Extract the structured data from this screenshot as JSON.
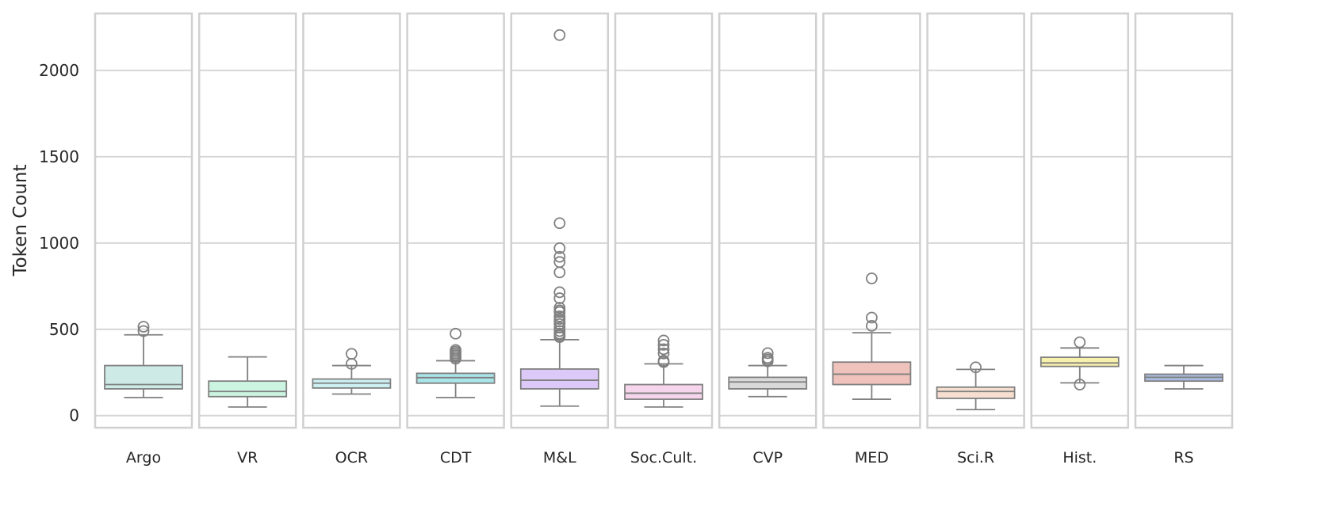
{
  "chart_data": {
    "type": "box",
    "ylabel": "Token Count",
    "y_ticks": [
      0,
      500,
      1000,
      1500,
      2000
    ],
    "ylim": [
      -70,
      2330
    ],
    "grid": true,
    "categories": [
      "Argo",
      "VR",
      "OCR",
      "CDT",
      "M&L",
      "Soc.Cult.",
      "CVP",
      "MED",
      "Sci.R",
      "Hist.",
      "RS"
    ],
    "boxes": [
      {
        "category": "Argo",
        "color": "#cdeae7",
        "whisker_low": 105,
        "q1": 155,
        "median": 180,
        "q3": 290,
        "whisker_high": 468,
        "outliers": [
          490,
          515
        ]
      },
      {
        "category": "VR",
        "color": "#ccf5e1",
        "whisker_low": 50,
        "q1": 110,
        "median": 140,
        "q3": 200,
        "whisker_high": 340,
        "outliers": []
      },
      {
        "category": "OCR",
        "color": "#cdf0f2",
        "whisker_low": 125,
        "q1": 160,
        "median": 188,
        "q3": 212,
        "whisker_high": 290,
        "outliers": [
          300,
          358
        ]
      },
      {
        "category": "CDT",
        "color": "#a8e4e8",
        "whisker_low": 105,
        "q1": 188,
        "median": 220,
        "q3": 245,
        "whisker_high": 318,
        "outliers": [
          330,
          340,
          350,
          360,
          370,
          380,
          475
        ]
      },
      {
        "category": "M&L",
        "color": "#dcc9f7",
        "whisker_low": 55,
        "q1": 155,
        "median": 205,
        "q3": 270,
        "whisker_high": 440,
        "outliers": [
          455,
          465,
          475,
          490,
          510,
          530,
          545,
          560,
          575,
          600,
          610,
          625,
          680,
          715,
          830,
          890,
          920,
          970,
          1115,
          2205
        ]
      },
      {
        "category": "Soc.Cult.",
        "color": "#f6d5ec",
        "whisker_low": 50,
        "q1": 95,
        "median": 130,
        "q3": 180,
        "whisker_high": 300,
        "outliers": [
          310,
          318,
          360,
          385,
          410,
          435
        ]
      },
      {
        "category": "CVP",
        "color": "#d9d9d9",
        "whisker_low": 110,
        "q1": 155,
        "median": 195,
        "q3": 222,
        "whisker_high": 290,
        "outliers": [
          315,
          325,
          335,
          362
        ]
      },
      {
        "category": "MED",
        "color": "#efc2bc",
        "whisker_low": 95,
        "q1": 180,
        "median": 240,
        "q3": 310,
        "whisker_high": 480,
        "outliers": [
          520,
          568,
          795
        ]
      },
      {
        "category": "Sci.R",
        "color": "#f6dfd0",
        "whisker_low": 35,
        "q1": 100,
        "median": 140,
        "q3": 165,
        "whisker_high": 268,
        "outliers": [
          280
        ]
      },
      {
        "category": "Hist.",
        "color": "#f8f1ac",
        "whisker_low": 190,
        "q1": 285,
        "median": 305,
        "q3": 338,
        "whisker_high": 392,
        "outliers": [
          180,
          425
        ]
      },
      {
        "category": "RS",
        "color": "#a9bbe0",
        "whisker_low": 155,
        "q1": 200,
        "median": 222,
        "q3": 240,
        "whisker_high": 290,
        "outliers": []
      }
    ]
  }
}
